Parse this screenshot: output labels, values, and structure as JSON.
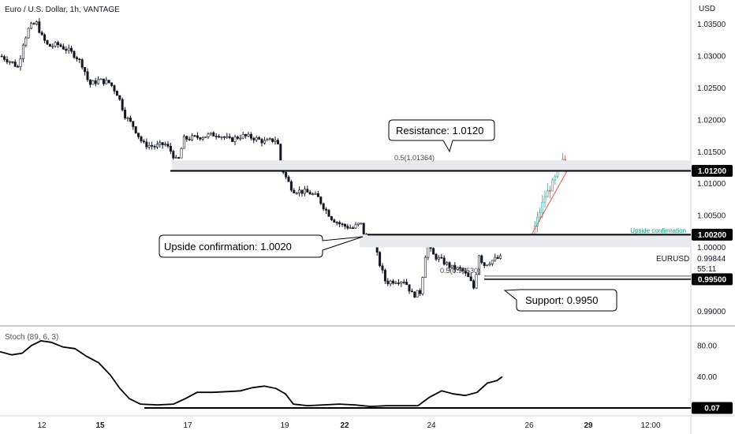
{
  "header": {
    "title": "Euro / U.S. Dollar, 1h, VANTAGE"
  },
  "price_axis": {
    "currency_label": "USD",
    "ticks": [
      "1.03500",
      "1.03000",
      "1.02500",
      "1.02000",
      "1.01500",
      "1.01000",
      "1.00500",
      "1.00000",
      "0.99500",
      "0.99000"
    ]
  },
  "badges": {
    "resistance": "1.01200",
    "upside": "1.00200",
    "support": "0.99500",
    "stoch": "0.07"
  },
  "symbol_readout": {
    "symbol": "EURUSD",
    "price": "0.99844",
    "countdown": "55:11"
  },
  "callouts": {
    "resistance": "Resistance: 1.0120",
    "upside": "Upside confirmation: 1.0020",
    "support": "Support: 0.9950"
  },
  "annotations": {
    "fib_upper": "0.5(1.01364)",
    "fib_lower": "0.5(0.99530)",
    "upside_small": "Upside confirmation"
  },
  "indicator": {
    "label": "Stoch (89, 6, 3)",
    "ticks": [
      "80.00",
      "40.00"
    ]
  },
  "time_axis": {
    "ticks": [
      "12",
      "15",
      "17",
      "19",
      "22",
      "24",
      "26",
      "29",
      "12:00"
    ]
  },
  "colors": {
    "up": "#26a69a",
    "down": "#000000",
    "projection_up": "#26a69a",
    "projection_down": "#ef5350",
    "zone": "#e0e3eb",
    "accent_text": "#089981"
  },
  "chart_data": {
    "type": "candlestick",
    "title": "Euro / U.S. Dollar, 1h, VANTAGE",
    "ylabel": "USD",
    "ylim": [
      0.9888,
      1.0378
    ],
    "levels": {
      "resistance": 1.012,
      "upside_confirmation": 1.002,
      "support": 0.995
    },
    "zones": [
      [
        1.012,
        1.01364
      ],
      [
        1.0,
        1.002
      ]
    ],
    "price_path": [
      [
        0,
        1.03
      ],
      [
        14,
        1.029
      ],
      [
        22,
        1.0282
      ],
      [
        28,
        1.032
      ],
      [
        36,
        1.0345
      ],
      [
        45,
        1.0352
      ],
      [
        52,
        1.033
      ],
      [
        60,
        1.0315
      ],
      [
        72,
        1.0318
      ],
      [
        84,
        1.031
      ],
      [
        95,
        1.03
      ],
      [
        104,
        1.0285
      ],
      [
        112,
        1.0255
      ],
      [
        124,
        1.0262
      ],
      [
        138,
        1.0258
      ],
      [
        148,
        1.024
      ],
      [
        158,
        1.0205
      ],
      [
        168,
        1.019
      ],
      [
        180,
        1.0162
      ],
      [
        195,
        1.0158
      ],
      [
        208,
        1.0162
      ],
      [
        216,
        1.015
      ],
      [
        224,
        1.0132
      ],
      [
        232,
        1.017
      ],
      [
        245,
        1.0172
      ],
      [
        260,
        1.0175
      ],
      [
        275,
        1.0178
      ],
      [
        290,
        1.0168
      ],
      [
        305,
        1.0175
      ],
      [
        320,
        1.0172
      ],
      [
        335,
        1.0165
      ],
      [
        350,
        1.017
      ],
      [
        356,
        1.0125
      ],
      [
        362,
        1.0108
      ],
      [
        370,
        1.009
      ],
      [
        380,
        1.0088
      ],
      [
        392,
        1.0085
      ],
      [
        402,
        1.0078
      ],
      [
        410,
        1.0062
      ],
      [
        420,
        1.0045
      ],
      [
        432,
        1.0035
      ],
      [
        446,
        1.003
      ],
      [
        456,
        1.0038
      ],
      [
        462,
        1.0015
      ],
      [
        472,
        1.001
      ],
      [
        480,
        0.9975
      ],
      [
        488,
        0.9945
      ],
      [
        500,
        0.9948
      ],
      [
        512,
        0.9948
      ],
      [
        522,
        0.9925
      ],
      [
        532,
        0.993
      ],
      [
        540,
        1.0005
      ],
      [
        548,
        0.9988
      ],
      [
        560,
        0.9978
      ],
      [
        572,
        0.9968
      ],
      [
        584,
        0.9965
      ],
      [
        594,
        0.995
      ],
      [
        600,
        0.9935
      ],
      [
        606,
        0.999
      ],
      [
        612,
        0.9972
      ],
      [
        620,
        0.9978
      ],
      [
        628,
        0.9982
      ],
      [
        636,
        0.9984
      ]
    ],
    "projection_path": [
      [
        674,
        1.002
      ],
      [
        690,
        1.008
      ],
      [
        702,
        1.0105
      ],
      [
        712,
        1.0135
      ],
      [
        718,
        1.012
      ]
    ],
    "stochastic": {
      "name": "Stoch (89, 6, 3)",
      "ylim": [
        -5,
        100
      ],
      "level": 0.07,
      "path": [
        [
          0,
          72
        ],
        [
          15,
          68
        ],
        [
          28,
          70
        ],
        [
          40,
          80
        ],
        [
          52,
          86
        ],
        [
          65,
          84
        ],
        [
          80,
          78
        ],
        [
          95,
          76
        ],
        [
          110,
          66
        ],
        [
          125,
          58
        ],
        [
          140,
          42
        ],
        [
          152,
          25
        ],
        [
          164,
          12
        ],
        [
          178,
          5
        ],
        [
          200,
          4
        ],
        [
          220,
          5
        ],
        [
          235,
          12
        ],
        [
          250,
          20
        ],
        [
          270,
          20
        ],
        [
          290,
          21
        ],
        [
          305,
          22
        ],
        [
          320,
          26
        ],
        [
          335,
          28
        ],
        [
          350,
          25
        ],
        [
          362,
          18
        ],
        [
          372,
          5
        ],
        [
          390,
          3
        ],
        [
          410,
          4
        ],
        [
          430,
          5
        ],
        [
          450,
          4
        ],
        [
          470,
          2
        ],
        [
          490,
          3
        ],
        [
          510,
          3
        ],
        [
          530,
          3
        ],
        [
          545,
          14
        ],
        [
          560,
          22
        ],
        [
          575,
          18
        ],
        [
          590,
          16
        ],
        [
          605,
          20
        ],
        [
          618,
          32
        ],
        [
          630,
          35
        ],
        [
          637,
          40
        ]
      ]
    },
    "x_ticks": [
      "12",
      "15",
      "17",
      "19",
      "22",
      "24",
      "26",
      "29",
      "12:00"
    ]
  }
}
